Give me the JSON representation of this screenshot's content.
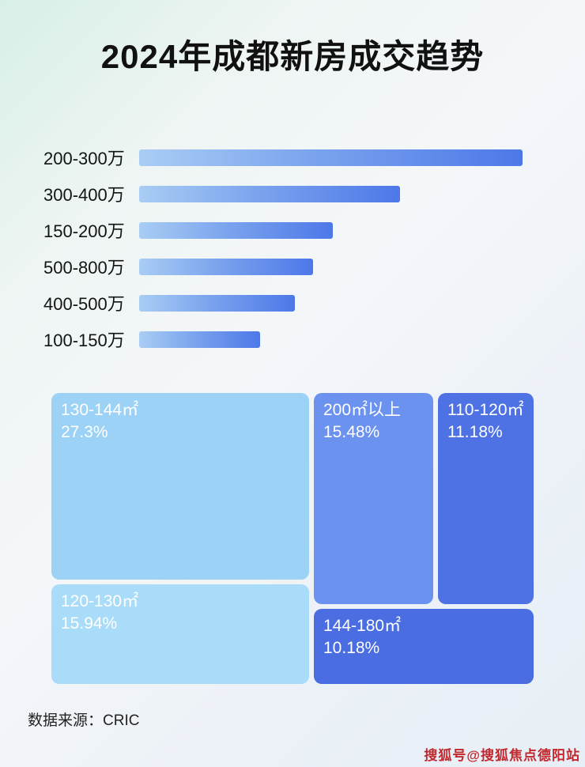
{
  "page": {
    "title": "2024年成都新房成交趋势",
    "source": "数据来源：CRIC",
    "watermark": "搜狐号@搜狐焦点德阳站"
  },
  "chart_data": [
    {
      "type": "bar",
      "orientation": "horizontal",
      "title": "2024年成都新房成交趋势",
      "categories": [
        "200-300万",
        "300-400万",
        "150-200万",
        "500-800万",
        "400-500万",
        "100-150万"
      ],
      "values": [
        100,
        68,
        50.5,
        45.4,
        40.6,
        31.5
      ],
      "value_note": "no numeric labels shown in image; values are relative bar lengths as % of longest bar",
      "xlabel": "",
      "ylabel": "",
      "grid": false,
      "legend": false,
      "bar_gradient": [
        "#a9cdf4",
        "#4d78e8"
      ]
    },
    {
      "type": "treemap",
      "title": "",
      "items": [
        {
          "label": "130-144㎡",
          "pct": "27.3%",
          "value": 27.3,
          "color": "#9cd2f6"
        },
        {
          "label": "120-130㎡",
          "pct": "15.94%",
          "value": 15.94,
          "color": "#a9dcf8"
        },
        {
          "label": "200㎡以上",
          "pct": "15.48%",
          "value": 15.48,
          "color": "#6a92ee"
        },
        {
          "label": "110-120㎡",
          "pct": "11.18%",
          "value": 11.18,
          "color": "#4e71e4"
        },
        {
          "label": "144-180㎡",
          "pct": "10.18%",
          "value": 10.18,
          "color": "#4a6ee2"
        }
      ]
    }
  ]
}
